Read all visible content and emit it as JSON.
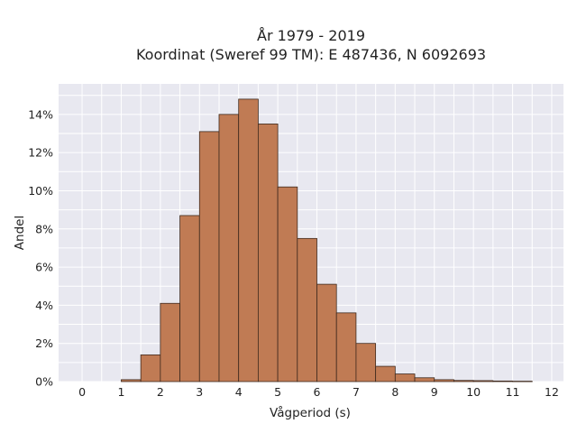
{
  "chart_data": {
    "type": "bar",
    "title_line1": "År 1979 - 2019",
    "title_line2": "Koordinat (Sweref 99 TM): E 487436, N 6092693",
    "xlabel": "Vågperiod (s)",
    "ylabel": "Andel",
    "xlim": [
      -0.6,
      12.3
    ],
    "ylim": [
      0,
      15.6
    ],
    "x_ticks": [
      0,
      1,
      2,
      3,
      4,
      5,
      6,
      7,
      8,
      9,
      10,
      11,
      12
    ],
    "x_tick_labels": [
      "0",
      "1",
      "2",
      "3",
      "4",
      "5",
      "6",
      "7",
      "8",
      "9",
      "10",
      "11",
      "12"
    ],
    "y_ticks": [
      0,
      2,
      4,
      6,
      8,
      10,
      12,
      14
    ],
    "y_tick_labels": [
      "0%",
      "2%",
      "4%",
      "6%",
      "8%",
      "10%",
      "12%",
      "14%"
    ],
    "grid": true,
    "bar_color": "#c07b54",
    "bar_edge_color": "#3f2a1e",
    "plot_background": "#e8e8f0",
    "bins": [
      {
        "x0": 1.0,
        "x1": 1.5,
        "value": 0.1
      },
      {
        "x0": 1.5,
        "x1": 2.0,
        "value": 1.4
      },
      {
        "x0": 2.0,
        "x1": 2.5,
        "value": 4.1
      },
      {
        "x0": 2.5,
        "x1": 3.0,
        "value": 8.7
      },
      {
        "x0": 3.0,
        "x1": 3.5,
        "value": 13.1
      },
      {
        "x0": 3.5,
        "x1": 4.0,
        "value": 14.0
      },
      {
        "x0": 4.0,
        "x1": 4.5,
        "value": 14.8
      },
      {
        "x0": 4.5,
        "x1": 5.0,
        "value": 13.5
      },
      {
        "x0": 5.0,
        "x1": 5.5,
        "value": 10.2
      },
      {
        "x0": 5.5,
        "x1": 6.0,
        "value": 7.5
      },
      {
        "x0": 6.0,
        "x1": 6.5,
        "value": 5.1
      },
      {
        "x0": 6.5,
        "x1": 7.0,
        "value": 3.6
      },
      {
        "x0": 7.0,
        "x1": 7.5,
        "value": 2.0
      },
      {
        "x0": 7.5,
        "x1": 8.0,
        "value": 0.8
      },
      {
        "x0": 8.0,
        "x1": 8.5,
        "value": 0.4
      },
      {
        "x0": 8.5,
        "x1": 9.0,
        "value": 0.2
      },
      {
        "x0": 9.0,
        "x1": 9.5,
        "value": 0.1
      },
      {
        "x0": 9.5,
        "x1": 10.0,
        "value": 0.06
      },
      {
        "x0": 10.0,
        "x1": 10.5,
        "value": 0.05
      },
      {
        "x0": 10.5,
        "x1": 11.0,
        "value": 0.03
      },
      {
        "x0": 11.0,
        "x1": 11.5,
        "value": 0.02
      }
    ]
  }
}
